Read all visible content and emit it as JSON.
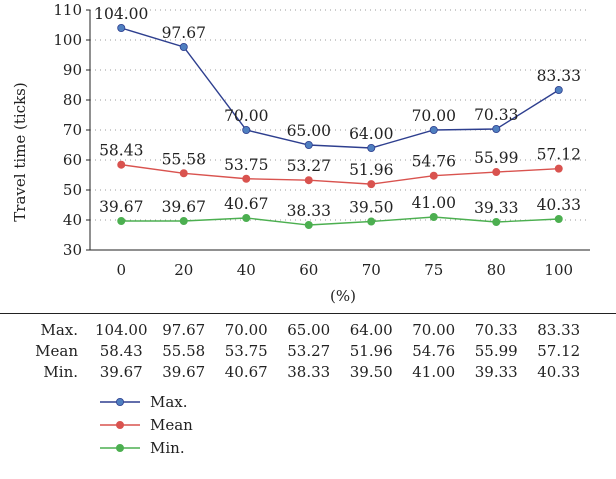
{
  "chart_data": {
    "type": "line",
    "title": "",
    "xlabel": "(%)",
    "ylabel": "Travel time (ticks)",
    "categories": [
      "0",
      "20",
      "40",
      "60",
      "70",
      "75",
      "80",
      "100"
    ],
    "ylim": [
      30,
      110
    ],
    "yticks": [
      "30",
      "40",
      "50",
      "60",
      "70",
      "80",
      "90",
      "100",
      "110"
    ],
    "grid": true,
    "legend_position": "bottom-left",
    "series": [
      {
        "name": "Max.",
        "color": "#2e3f8f",
        "marker_color": "#4f7fc0",
        "values": [
          104.0,
          97.67,
          70.0,
          65.0,
          64.0,
          70.0,
          70.33,
          83.33
        ],
        "labels": [
          "104.00",
          "97.67",
          "70.00",
          "65.00",
          "64.00",
          "70.00",
          "70.33",
          "83.33"
        ]
      },
      {
        "name": "Mean",
        "color": "#d9534f",
        "marker_color": "#d9534f",
        "values": [
          58.43,
          55.58,
          53.75,
          53.27,
          51.96,
          54.76,
          55.99,
          57.12
        ],
        "labels": [
          "58.43",
          "55.58",
          "53.75",
          "53.27",
          "51.96",
          "54.76",
          "55.99",
          "57.12"
        ]
      },
      {
        "name": "Min.",
        "color": "#4caf50",
        "marker_color": "#4caf50",
        "values": [
          39.67,
          39.67,
          40.67,
          38.33,
          39.5,
          41.0,
          39.33,
          40.33
        ],
        "labels": [
          "39.67",
          "39.67",
          "40.67",
          "38.33",
          "39.50",
          "41.00",
          "39.33",
          "40.33"
        ]
      }
    ],
    "table": {
      "rows": [
        {
          "label": "Max.",
          "cells": [
            "104.00",
            "97.67",
            "70.00",
            "65.00",
            "64.00",
            "70.00",
            "70.33",
            "83.33"
          ]
        },
        {
          "label": "Mean",
          "cells": [
            "58.43",
            "55.58",
            "53.75",
            "53.27",
            "51.96",
            "54.76",
            "55.99",
            "57.12"
          ]
        },
        {
          "label": "Min.",
          "cells": [
            "39.67",
            "39.67",
            "40.67",
            "38.33",
            "39.50",
            "41.00",
            "39.33",
            "40.33"
          ]
        }
      ]
    }
  }
}
